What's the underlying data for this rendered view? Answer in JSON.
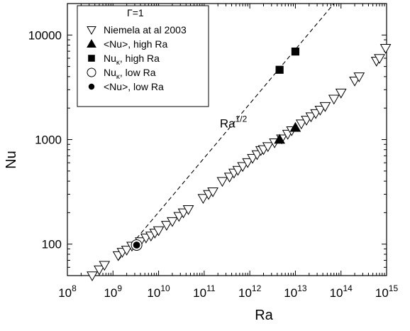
{
  "chart_data": {
    "type": "scatter",
    "title": "",
    "xlabel": "Ra",
    "ylabel": "Nu",
    "x_scale": "log",
    "y_scale": "log",
    "xlim": [
      100000000.0,
      1000000000000000.0
    ],
    "ylim": [
      50,
      20000
    ],
    "grid": false,
    "legend_position": "top-left",
    "x_ticks": [
      {
        "base": "10",
        "exp": "8",
        "value": 100000000.0
      },
      {
        "base": "10",
        "exp": "9",
        "value": 1000000000.0
      },
      {
        "base": "10",
        "exp": "10",
        "value": 10000000000.0
      },
      {
        "base": "10",
        "exp": "11",
        "value": 100000000000.0
      },
      {
        "base": "10",
        "exp": "12",
        "value": 1000000000000.0
      },
      {
        "base": "10",
        "exp": "13",
        "value": 10000000000000.0
      },
      {
        "base": "10",
        "exp": "14",
        "value": 100000000000000.0
      },
      {
        "base": "10",
        "exp": "15",
        "value": 1000000000000000.0
      }
    ],
    "y_ticks": [
      {
        "label": "100",
        "value": 100
      },
      {
        "label": "1000",
        "value": 1000
      },
      {
        "label": "10000",
        "value": 10000
      }
    ],
    "legend_title": "Γ=1",
    "series": [
      {
        "name": "Niemela at al 2003",
        "marker": "triangle-down-open",
        "color": "#000000",
        "points": [
          [
            350000000.0,
            50
          ],
          [
            500000000.0,
            57
          ],
          [
            650000000.0,
            63
          ],
          [
            1300000000.0,
            78
          ],
          [
            1600000000.0,
            84
          ],
          [
            2000000000.0,
            88
          ],
          [
            2600000000.0,
            96
          ],
          [
            4000000000.0,
            106
          ],
          [
            5300000000.0,
            115
          ],
          [
            6800000000.0,
            120
          ],
          [
            8300000000.0,
            128
          ],
          [
            10000000000.0,
            135
          ],
          [
            15000000000.0,
            152
          ],
          [
            20000000000.0,
            165
          ],
          [
            28000000000.0,
            185
          ],
          [
            35000000000.0,
            200
          ],
          [
            45000000000.0,
            215
          ],
          [
            95000000000.0,
            275
          ],
          [
            125000000000.0,
            300
          ],
          [
            155000000000.0,
            318
          ],
          [
            250000000000.0,
            400
          ],
          [
            360000000000.0,
            440
          ],
          [
            450000000000.0,
            480
          ],
          [
            550000000000.0,
            510
          ],
          [
            700000000000.0,
            555
          ],
          [
            900000000000.0,
            605
          ],
          [
            1150000000000.0,
            665
          ],
          [
            1450000000000.0,
            720
          ],
          [
            1750000000000.0,
            790
          ],
          [
            2000000000000.0,
            805
          ],
          [
            2500000000000.0,
            860
          ],
          [
            3500000000000.0,
            935
          ],
          [
            5000000000000.0,
            1020
          ],
          [
            6800000000000.0,
            1130
          ],
          [
            8300000000000.0,
            1220
          ],
          [
            13500000000000.0,
            1420
          ],
          [
            17500000000000.0,
            1540
          ],
          [
            22000000000000.0,
            1660
          ],
          [
            28000000000000.0,
            1780
          ],
          [
            35000000000000.0,
            1920
          ],
          [
            45000000000000.0,
            2080
          ],
          [
            70000000000000.0,
            2450
          ],
          [
            100000000000000.0,
            2800
          ],
          [
            200000000000000.0,
            3650
          ],
          [
            250000000000000.0,
            4000
          ],
          [
            600000000000000.0,
            5650
          ],
          [
            700000000000000.0,
            6000
          ],
          [
            950000000000000.0,
            7500
          ]
        ]
      },
      {
        "name": "<Nu>, high Ra",
        "marker": "triangle-up-filled",
        "color": "#000000",
        "points": [
          [
            4500000000000.0,
            1000
          ],
          [
            10000000000000.0,
            1300
          ]
        ]
      },
      {
        "name": "Nu_κ, high Ra",
        "name_main": "Nu",
        "name_sub": "κ",
        "name_rest": ", high Ra",
        "marker": "square-filled",
        "color": "#000000",
        "points": [
          [
            4500000000000.0,
            4650
          ],
          [
            10000000000000.0,
            6950
          ]
        ]
      },
      {
        "name": "Nu_κ, low Ra",
        "name_main": "Nu",
        "name_sub": "κ",
        "name_rest": ", low Ra",
        "marker": "circle-open",
        "color": "#000000",
        "points": [
          [
            3300000000.0,
            98
          ]
        ]
      },
      {
        "name": "<Nu>, low Ra",
        "marker": "circle-filled",
        "color": "#000000",
        "points": [
          [
            3300000000.0,
            98
          ]
        ]
      }
    ],
    "reference_line": {
      "label_base": "Ra",
      "label_exp": "1/2",
      "label_at": [
        220000000000.0,
        1300
      ],
      "style": "dashed",
      "points": [
        [
          1300000000.0,
          70
        ],
        [
          70000000000000.0,
          20000
        ]
      ]
    }
  }
}
